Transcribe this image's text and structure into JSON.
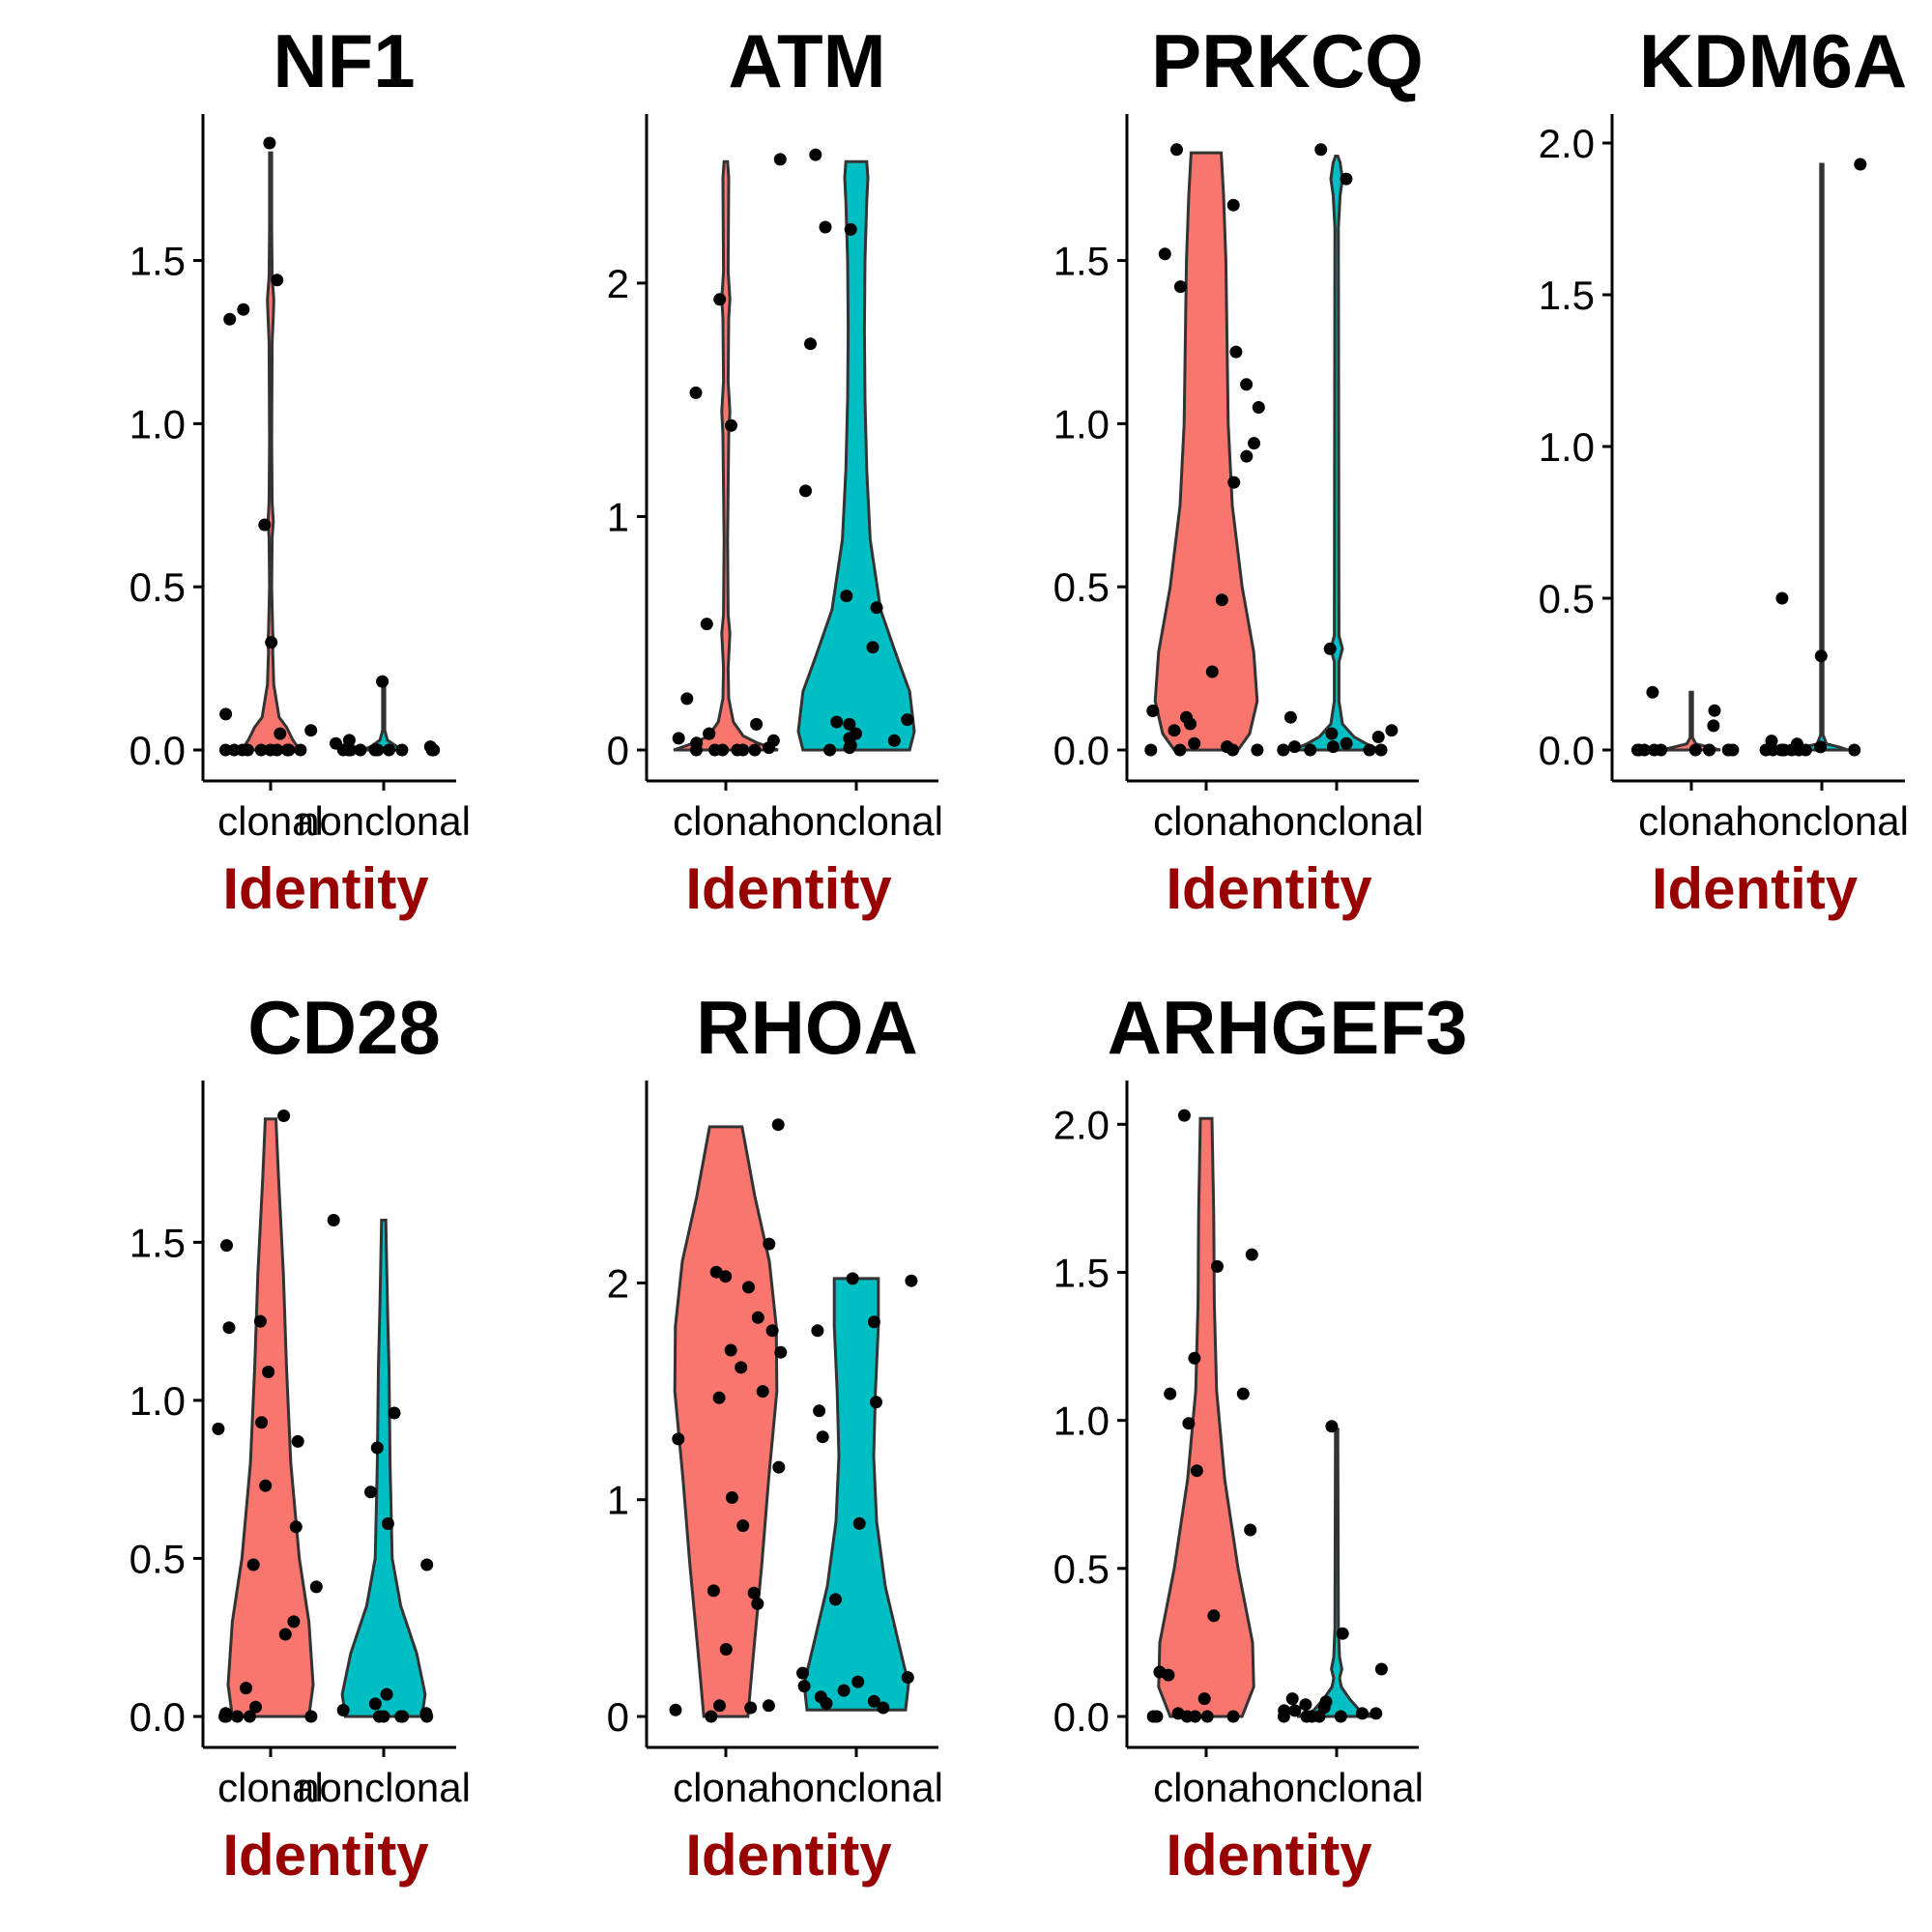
{
  "colors": {
    "clonal": "#F8766D",
    "nonclonal": "#00BFC4",
    "axis_title": "#990000"
  },
  "chart_data": [
    {
      "type": "violin",
      "title": "NF1",
      "xlabel": "Identity",
      "ylabel": "",
      "categories": [
        "clonal",
        "nonclonal"
      ],
      "ylim": [
        0,
        1.86
      ],
      "yticks": [
        0,
        0.5,
        1,
        1.5
      ],
      "tick_format": "0.0",
      "violins": [
        {
          "category": "clonal",
          "max": 1.83,
          "profile": [
            [
              0,
              0.55
            ],
            [
              0.03,
              0.42
            ],
            [
              0.07,
              0.3
            ],
            [
              0.1,
              0.16
            ],
            [
              0.2,
              0.06
            ],
            [
              0.3,
              0.04
            ],
            [
              0.33,
              0.05
            ],
            [
              0.36,
              0.04
            ],
            [
              0.5,
              0.02
            ],
            [
              0.65,
              0.03
            ],
            [
              0.7,
              0.05
            ],
            [
              0.76,
              0.03
            ],
            [
              0.95,
              0.02
            ],
            [
              1.25,
              0.03
            ],
            [
              1.33,
              0.05
            ],
            [
              1.38,
              0.06
            ],
            [
              1.45,
              0.03
            ],
            [
              1.6,
              0.02
            ],
            [
              1.83,
              0.02
            ]
          ]
        },
        {
          "category": "nonclonal",
          "max": 0.2,
          "profile": [
            [
              0,
              0.4
            ],
            [
              0.01,
              0.25
            ],
            [
              0.03,
              0.07
            ],
            [
              0.06,
              0.02
            ],
            [
              0.2,
              0.02
            ]
          ]
        }
      ],
      "points": {
        "clonal": [
          1.86,
          1.44,
          1.32,
          1.35,
          0.69,
          0.33,
          0.11,
          0.06,
          0.05,
          0,
          0,
          0,
          0,
          0,
          0,
          0,
          0,
          0,
          0
        ],
        "nonclonal": [
          0.21,
          0.03,
          0.02,
          0.01,
          0,
          0,
          0,
          0,
          0,
          0,
          0,
          0,
          0,
          0
        ]
      }
    },
    {
      "type": "violin",
      "title": "ATM",
      "xlabel": "Identity",
      "ylabel": "",
      "categories": [
        "clonal",
        "nonclonal"
      ],
      "ylim": [
        0,
        2.6
      ],
      "yticks": [
        0,
        1,
        2
      ],
      "tick_format": "0",
      "violins": [
        {
          "category": "clonal",
          "max": 2.52,
          "profile": [
            [
              0,
              0.9
            ],
            [
              0.03,
              0.55
            ],
            [
              0.06,
              0.3
            ],
            [
              0.12,
              0.13
            ],
            [
              0.22,
              0.05
            ],
            [
              0.35,
              0.04
            ],
            [
              0.5,
              0.07
            ],
            [
              0.58,
              0.04
            ],
            [
              0.9,
              0.03
            ],
            [
              1.35,
              0.05
            ],
            [
              1.45,
              0.07
            ],
            [
              1.58,
              0.04
            ],
            [
              1.85,
              0.05
            ],
            [
              1.93,
              0.07
            ],
            [
              2.05,
              0.04
            ],
            [
              2.45,
              0.05
            ],
            [
              2.52,
              0.03
            ]
          ]
        },
        {
          "category": "nonclonal",
          "max": 2.52,
          "profile": [
            [
              0,
              0.92
            ],
            [
              0.08,
              1.0
            ],
            [
              0.25,
              0.92
            ],
            [
              0.4,
              0.7
            ],
            [
              0.6,
              0.42
            ],
            [
              0.9,
              0.24
            ],
            [
              1.2,
              0.18
            ],
            [
              1.5,
              0.15
            ],
            [
              1.8,
              0.14
            ],
            [
              2.1,
              0.15
            ],
            [
              2.35,
              0.18
            ],
            [
              2.45,
              0.2
            ],
            [
              2.52,
              0.18
            ]
          ]
        }
      ],
      "points": {
        "clonal": [
          2.53,
          1.93,
          1.53,
          1.39,
          0.54,
          0.22,
          0.11,
          0.07,
          0.07,
          0.05,
          0.04,
          0.03,
          0.01,
          0,
          0,
          0,
          0,
          0,
          0
        ],
        "nonclonal": [
          2.55,
          2.24,
          2.23,
          1.74,
          1.11,
          0.66,
          0.61,
          0.44,
          0.13,
          0.12,
          0.11,
          0.07,
          0.05,
          0.04,
          0.02,
          0.01,
          0
        ]
      }
    },
    {
      "type": "violin",
      "title": "PRKCQ",
      "xlabel": "Identity",
      "ylabel": "",
      "categories": [
        "clonal",
        "nonclonal"
      ],
      "ylim": [
        0,
        1.86
      ],
      "yticks": [
        0,
        0.5,
        1,
        1.5
      ],
      "tick_format": "0.0",
      "violins": [
        {
          "category": "clonal",
          "max": 1.83,
          "profile": [
            [
              0,
              0.55
            ],
            [
              0.05,
              0.75
            ],
            [
              0.15,
              0.88
            ],
            [
              0.3,
              0.82
            ],
            [
              0.5,
              0.62
            ],
            [
              0.75,
              0.45
            ],
            [
              1.0,
              0.38
            ],
            [
              1.25,
              0.36
            ],
            [
              1.5,
              0.34
            ],
            [
              1.7,
              0.3
            ],
            [
              1.83,
              0.26
            ]
          ]
        },
        {
          "category": "nonclonal",
          "max": 1.82,
          "profile": [
            [
              0,
              0.75
            ],
            [
              0.02,
              0.5
            ],
            [
              0.04,
              0.3
            ],
            [
              0.08,
              0.1
            ],
            [
              0.15,
              0.04
            ],
            [
              0.27,
              0.04
            ],
            [
              0.31,
              0.1
            ],
            [
              0.35,
              0.04
            ],
            [
              1.6,
              0.03
            ],
            [
              1.7,
              0.06
            ],
            [
              1.75,
              0.1
            ],
            [
              1.8,
              0.06
            ],
            [
              1.82,
              0.02
            ]
          ]
        }
      ],
      "points": {
        "clonal": [
          1.84,
          1.67,
          1.52,
          1.42,
          1.22,
          1.12,
          1.05,
          0.94,
          0.9,
          0.82,
          0.46,
          0.24,
          0.12,
          0.1,
          0.08,
          0.06,
          0.02,
          0.01,
          0,
          0,
          0,
          0
        ],
        "nonclonal": [
          1.84,
          1.75,
          0.31,
          0.1,
          0.06,
          0.05,
          0.04,
          0.02,
          0.01,
          0.01,
          0,
          0,
          0,
          0
        ]
      }
    },
    {
      "type": "violin",
      "title": "KDM6A",
      "xlabel": "Identity",
      "ylabel": "",
      "categories": [
        "clonal",
        "nonclonal"
      ],
      "ylim": [
        0,
        2.0
      ],
      "yticks": [
        0,
        0.5,
        1,
        1.5,
        2
      ],
      "tick_format": "0.0",
      "violins": [
        {
          "category": "clonal",
          "max": 0.19,
          "profile": [
            [
              0,
              0.5
            ],
            [
              0.01,
              0.3
            ],
            [
              0.02,
              0.08
            ],
            [
              0.04,
              0.02
            ],
            [
              0.19,
              0.02
            ]
          ]
        },
        {
          "category": "nonclonal",
          "max": 1.93,
          "profile": [
            [
              0,
              0.45
            ],
            [
              0.01,
              0.3
            ],
            [
              0.02,
              0.08
            ],
            [
              0.05,
              0.02
            ],
            [
              1.93,
              0.02
            ]
          ]
        }
      ],
      "points": {
        "clonal": [
          0.19,
          0.13,
          0.08,
          0,
          0,
          0,
          0,
          0,
          0,
          0,
          0,
          0,
          0
        ],
        "nonclonal": [
          1.93,
          0.5,
          0.31,
          0.03,
          0.02,
          0.01,
          0,
          0,
          0,
          0,
          0,
          0,
          0,
          0
        ]
      }
    },
    {
      "type": "violin",
      "title": "CD28",
      "xlabel": "Identity",
      "ylabel": "",
      "categories": [
        "clonal",
        "nonclonal"
      ],
      "ylim": [
        0,
        1.92
      ],
      "yticks": [
        0,
        0.5,
        1,
        1.5
      ],
      "tick_format": "0.0",
      "violins": [
        {
          "category": "clonal",
          "max": 1.89,
          "profile": [
            [
              0,
              0.72
            ],
            [
              0.1,
              0.8
            ],
            [
              0.3,
              0.72
            ],
            [
              0.5,
              0.54
            ],
            [
              0.8,
              0.38
            ],
            [
              1.1,
              0.3
            ],
            [
              1.4,
              0.24
            ],
            [
              1.7,
              0.15
            ],
            [
              1.89,
              0.1
            ]
          ]
        },
        {
          "category": "nonclonal",
          "max": 1.57,
          "profile": [
            [
              0,
              0.72
            ],
            [
              0.07,
              0.78
            ],
            [
              0.2,
              0.62
            ],
            [
              0.35,
              0.32
            ],
            [
              0.5,
              0.16
            ],
            [
              0.8,
              0.12
            ],
            [
              1.1,
              0.1
            ],
            [
              1.3,
              0.07
            ],
            [
              1.57,
              0.04
            ]
          ]
        }
      ],
      "points": {
        "clonal": [
          1.9,
          1.49,
          1.25,
          1.23,
          1.09,
          0.93,
          0.91,
          0.87,
          0.73,
          0.6,
          0.48,
          0.41,
          0.3,
          0.26,
          0.09,
          0.03,
          0.01,
          0,
          0,
          0,
          0,
          0
        ],
        "nonclonal": [
          1.57,
          0.96,
          0.85,
          0.71,
          0.61,
          0.48,
          0.07,
          0.04,
          0.02,
          0.01,
          0,
          0,
          0,
          0,
          0
        ]
      }
    },
    {
      "type": "violin",
      "title": "RHOA",
      "xlabel": "Identity",
      "ylabel": "",
      "categories": [
        "clonal",
        "nonclonal"
      ],
      "ylim": [
        0,
        2.8
      ],
      "yticks": [
        0,
        1,
        2
      ],
      "tick_format": "0",
      "violins": [
        {
          "category": "clonal",
          "max": 2.72,
          "profile": [
            [
              0,
              0.38
            ],
            [
              0.3,
              0.48
            ],
            [
              0.7,
              0.62
            ],
            [
              1.1,
              0.74
            ],
            [
              1.5,
              0.88
            ],
            [
              1.8,
              0.87
            ],
            [
              2.1,
              0.75
            ],
            [
              2.4,
              0.5
            ],
            [
              2.72,
              0.28
            ]
          ]
        },
        {
          "category": "nonclonal",
          "max": 2.02,
          "profile": [
            [
              0.03,
              0.85
            ],
            [
              0.15,
              0.9
            ],
            [
              0.35,
              0.72
            ],
            [
              0.6,
              0.5
            ],
            [
              0.9,
              0.35
            ],
            [
              1.2,
              0.3
            ],
            [
              1.5,
              0.33
            ],
            [
              1.8,
              0.38
            ],
            [
              2.02,
              0.38
            ]
          ]
        }
      ],
      "points": {
        "clonal": [
          2.73,
          2.18,
          2.05,
          2.03,
          1.98,
          1.84,
          1.78,
          1.69,
          1.68,
          1.61,
          1.5,
          1.47,
          1.28,
          1.15,
          1.01,
          0.88,
          0.58,
          0.57,
          0.52,
          0.31,
          0.05,
          0.05,
          0.04,
          0.03,
          0
        ],
        "nonclonal": [
          2.02,
          2.01,
          1.82,
          1.78,
          1.45,
          1.41,
          1.29,
          0.89,
          0.54,
          0.2,
          0.18,
          0.16,
          0.14,
          0.12,
          0.09,
          0.07,
          0.06,
          0.04
        ]
      }
    },
    {
      "type": "violin",
      "title": "ARHGEF3",
      "xlabel": "Identity",
      "ylabel": "",
      "categories": [
        "clonal",
        "nonclonal"
      ],
      "ylim": [
        0,
        2.05
      ],
      "yticks": [
        0,
        0.5,
        1,
        1.5,
        2
      ],
      "tick_format": "0.0",
      "violins": [
        {
          "category": "clonal",
          "max": 2.02,
          "profile": [
            [
              0,
              0.62
            ],
            [
              0.1,
              0.82
            ],
            [
              0.25,
              0.8
            ],
            [
              0.5,
              0.55
            ],
            [
              0.8,
              0.32
            ],
            [
              1.1,
              0.18
            ],
            [
              1.4,
              0.14
            ],
            [
              1.7,
              0.13
            ],
            [
              2.02,
              0.1
            ]
          ]
        },
        {
          "category": "nonclonal",
          "max": 0.97,
          "profile": [
            [
              0,
              0.68
            ],
            [
              0.02,
              0.4
            ],
            [
              0.06,
              0.22
            ],
            [
              0.1,
              0.08
            ],
            [
              0.13,
              0.05
            ],
            [
              0.16,
              0.09
            ],
            [
              0.2,
              0.05
            ],
            [
              0.3,
              0.03
            ],
            [
              0.97,
              0.02
            ]
          ]
        }
      ],
      "points": {
        "clonal": [
          2.03,
          1.56,
          1.52,
          1.21,
          1.09,
          1.09,
          0.99,
          0.83,
          0.63,
          0.34,
          0.15,
          0.14,
          0.06,
          0.01,
          0,
          0,
          0,
          0,
          0,
          0
        ],
        "nonclonal": [
          0.98,
          0.28,
          0.16,
          0.06,
          0.05,
          0.04,
          0.03,
          0.02,
          0.02,
          0.01,
          0.01,
          0,
          0,
          0,
          0,
          0
        ]
      }
    }
  ]
}
